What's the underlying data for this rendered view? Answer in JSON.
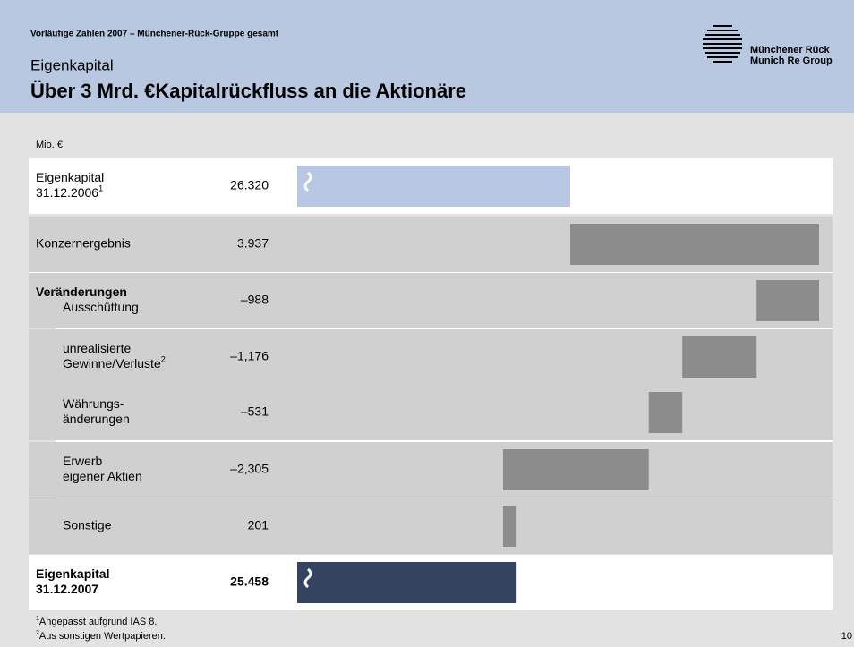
{
  "header": {
    "kicker": "Vorläufige Zahlen  2007 – Münchener-Rück-Gruppe gesamt",
    "section": "Eigenkapital",
    "title": "Über 3 Mrd. €Kapitalrückfluss an die Aktionäre",
    "logo_lines": [
      "Münchener Rück",
      "Munich Re Group"
    ]
  },
  "chart_data": {
    "type": "waterfall",
    "unit_label": "Mio. €",
    "categories": [
      {
        "lines": [
          "Eigenkapital",
          "31.12.2006"
        ],
        "sup": "1"
      },
      {
        "lines": [
          "Konzernergebnis"
        ]
      },
      {
        "heading": "Veränderungen",
        "lines": [
          "Ausschüttung"
        ]
      },
      {
        "lines": [
          "unrealisierte",
          "Gewinne/Verluste"
        ],
        "sup": "2"
      },
      {
        "lines": [
          "Währungs-",
          "änderungen"
        ]
      },
      {
        "lines": [
          "Erwerb",
          "eigener Aktien"
        ]
      },
      {
        "lines": [
          "Sonstige"
        ]
      },
      {
        "lines": [
          "Eigenkapital",
          "31.12.2007"
        ]
      }
    ],
    "values": [
      26320,
      3937,
      -988,
      -1176,
      -531,
      -2305,
      201,
      25458
    ],
    "value_labels": [
      "26.320",
      "3.937",
      "–988",
      "–1,176",
      "–531",
      "–2,305",
      "201",
      "25.458"
    ],
    "xlim": [
      22000,
      30257
    ],
    "start_color": "#b8c8e4",
    "change_color": "#8c8c8c",
    "end_color": "#34435f",
    "axis_break": true
  },
  "footnotes": [
    {
      "mark": "1",
      "text": "Angepasst aufgrund IAS 8."
    },
    {
      "mark": "2",
      "text": "Aus sonstigen Wertpapieren."
    }
  ],
  "page_number": "10"
}
